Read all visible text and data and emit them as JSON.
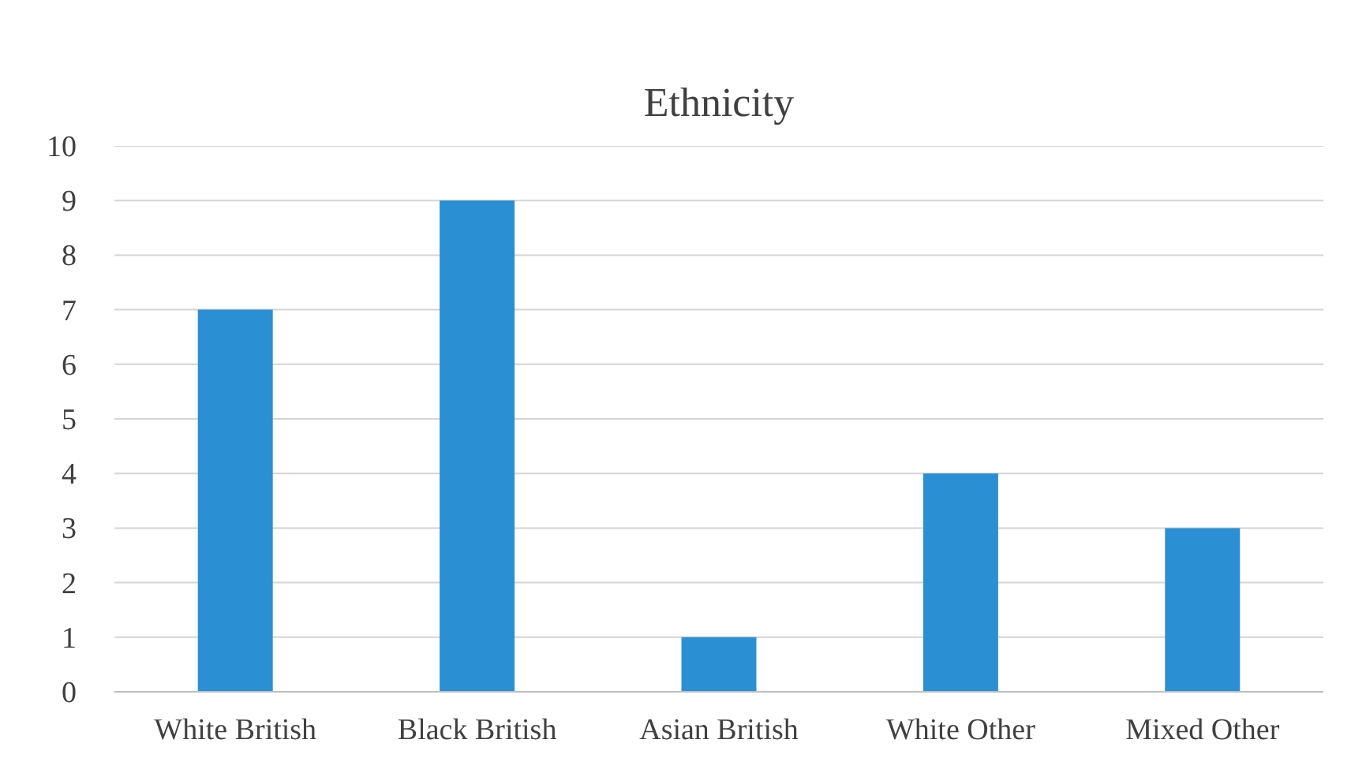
{
  "chart_data": {
    "type": "bar",
    "title": "Ethnicity",
    "categories": [
      "White British",
      "Black British",
      "Asian British",
      "White Other",
      "Mixed Other"
    ],
    "values": [
      7,
      9,
      1,
      4,
      3
    ],
    "color": "#2b8fd3",
    "ylim": [
      0,
      10
    ],
    "yticks": [
      0,
      1,
      2,
      3,
      4,
      5,
      6,
      7,
      8,
      9,
      10
    ],
    "grid": "y"
  }
}
